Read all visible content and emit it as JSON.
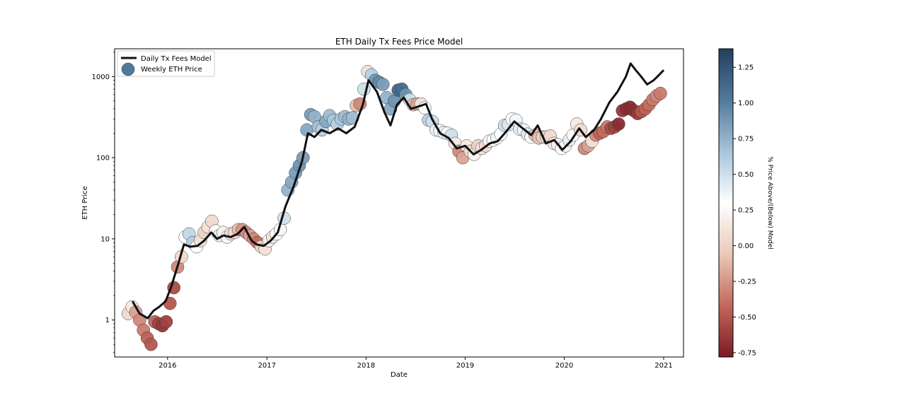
{
  "chart_data": {
    "type": "scatter",
    "title": "ETH Daily Tx Fees Price Model",
    "xlabel": "Date",
    "ylabel": "ETH Price",
    "y_scale": "log",
    "ylim": [
      0.35,
      2200
    ],
    "xlim": [
      "2015-06-20",
      "2021-03-15"
    ],
    "x_ticks": [
      "2016",
      "2017",
      "2018",
      "2019",
      "2020",
      "2021"
    ],
    "y_ticks": [
      "1",
      "10",
      "100",
      "1000"
    ],
    "legend": {
      "placement": "top-left",
      "entries": [
        "Daily Tx Fees Model",
        "Weekly ETH Price"
      ]
    },
    "colorbar": {
      "label": "% Price Above/(Below) Model",
      "range": [
        -0.78,
        1.38
      ],
      "ticks": [
        "1.25",
        "1.00",
        "0.75",
        "0.50",
        "0.25",
        "0.00",
        "-0.25",
        "-0.50",
        "-0.75"
      ],
      "colormap": [
        "#7a1b24",
        "#c36759",
        "#e9c9b8",
        "#ffffff",
        "#a7c5db",
        "#527a9c",
        "#243f60"
      ]
    },
    "series": [
      {
        "name": "Daily Tx Fees Model",
        "kind": "line",
        "color": "#111111",
        "points": [
          [
            "2015-08-25",
            1.7
          ],
          [
            "2015-09-20",
            1.2
          ],
          [
            "2015-10-20",
            1.05
          ],
          [
            "2015-11-10",
            1.3
          ],
          [
            "2015-12-01",
            1.45
          ],
          [
            "2015-12-25",
            1.7
          ],
          [
            "2016-01-15",
            2.6
          ],
          [
            "2016-02-10",
            5.0
          ],
          [
            "2016-03-01",
            8.5
          ],
          [
            "2016-03-25",
            8.0
          ],
          [
            "2016-04-20",
            8.2
          ],
          [
            "2016-05-15",
            9.5
          ],
          [
            "2016-06-10",
            12.0
          ],
          [
            "2016-07-01",
            10.0
          ],
          [
            "2016-07-25",
            11.0
          ],
          [
            "2016-08-20",
            10.5
          ],
          [
            "2016-09-15",
            11.5
          ],
          [
            "2016-10-10",
            14.0
          ],
          [
            "2016-11-05",
            9.5
          ],
          [
            "2016-11-25",
            8.5
          ],
          [
            "2016-12-20",
            8.2
          ],
          [
            "2017-01-15",
            9.5
          ],
          [
            "2017-02-10",
            12.0
          ],
          [
            "2017-03-10",
            25.0
          ],
          [
            "2017-04-10",
            45.0
          ],
          [
            "2017-05-10",
            90.0
          ],
          [
            "2017-06-01",
            200.0
          ],
          [
            "2017-06-25",
            180.0
          ],
          [
            "2017-07-20",
            220.0
          ],
          [
            "2017-08-20",
            200.0
          ],
          [
            "2017-09-20",
            230.0
          ],
          [
            "2017-10-20",
            200.0
          ],
          [
            "2017-11-20",
            240.0
          ],
          [
            "2017-12-20",
            450.0
          ],
          [
            "2018-01-10",
            900.0
          ],
          [
            "2018-02-10",
            650.0
          ],
          [
            "2018-03-10",
            360.0
          ],
          [
            "2018-04-01",
            250.0
          ],
          [
            "2018-04-25",
            450.0
          ],
          [
            "2018-05-20",
            550.0
          ],
          [
            "2018-06-15",
            400.0
          ],
          [
            "2018-07-15",
            430.0
          ],
          [
            "2018-08-10",
            460.0
          ],
          [
            "2018-09-01",
            300.0
          ],
          [
            "2018-10-01",
            200.0
          ],
          [
            "2018-11-01",
            175.0
          ],
          [
            "2018-12-01",
            130.0
          ],
          [
            "2019-01-01",
            140.0
          ],
          [
            "2019-02-01",
            110.0
          ],
          [
            "2019-03-01",
            125.0
          ],
          [
            "2019-04-01",
            150.0
          ],
          [
            "2019-05-01",
            160.0
          ],
          [
            "2019-06-01",
            210.0
          ],
          [
            "2019-07-01",
            280.0
          ],
          [
            "2019-08-01",
            230.0
          ],
          [
            "2019-09-01",
            190.0
          ],
          [
            "2019-09-25",
            250.0
          ],
          [
            "2019-10-25",
            150.0
          ],
          [
            "2019-11-25",
            165.0
          ],
          [
            "2019-12-25",
            125.0
          ],
          [
            "2020-01-25",
            160.0
          ],
          [
            "2020-02-25",
            230.0
          ],
          [
            "2020-03-20",
            180.0
          ],
          [
            "2020-04-20",
            220.0
          ],
          [
            "2020-05-15",
            300.0
          ],
          [
            "2020-06-15",
            480.0
          ],
          [
            "2020-07-15",
            650.0
          ],
          [
            "2020-08-15",
            1000.0
          ],
          [
            "2020-09-01",
            1450.0
          ],
          [
            "2020-09-20",
            1200.0
          ],
          [
            "2020-10-10",
            1000.0
          ],
          [
            "2020-11-01",
            800.0
          ],
          [
            "2020-11-25",
            900.0
          ],
          [
            "2020-12-15",
            1050.0
          ],
          [
            "2021-01-01",
            1200.0
          ]
        ]
      },
      {
        "name": "Weekly ETH Price",
        "kind": "scatter",
        "legend_color": "#4e7a9c",
        "points": [
          [
            "2015-08-09",
            1.2,
            0.05
          ],
          [
            "2015-08-23",
            1.45,
            0.15
          ],
          [
            "2015-09-06",
            1.25,
            -0.2
          ],
          [
            "2015-09-20",
            1.0,
            -0.3
          ],
          [
            "2015-10-04",
            0.75,
            -0.35
          ],
          [
            "2015-10-18",
            0.6,
            -0.45
          ],
          [
            "2015-11-01",
            0.5,
            -0.5
          ],
          [
            "2015-11-15",
            0.95,
            -0.45
          ],
          [
            "2015-11-29",
            0.9,
            -0.6
          ],
          [
            "2015-12-13",
            0.85,
            -0.65
          ],
          [
            "2015-12-27",
            0.95,
            -0.6
          ],
          [
            "2016-01-10",
            1.6,
            -0.5
          ],
          [
            "2016-01-24",
            2.5,
            -0.55
          ],
          [
            "2016-02-07",
            4.5,
            -0.3
          ],
          [
            "2016-02-21",
            6.0,
            0.05
          ],
          [
            "2016-03-06",
            10.5,
            0.3
          ],
          [
            "2016-03-20",
            11.5,
            0.55
          ],
          [
            "2016-04-03",
            9.0,
            0.6
          ],
          [
            "2016-04-17",
            8.0,
            0.3
          ],
          [
            "2016-05-01",
            9.5,
            0.1
          ],
          [
            "2016-05-15",
            12.0,
            0.0
          ],
          [
            "2016-05-29",
            14.0,
            0.1
          ],
          [
            "2016-06-12",
            16.5,
            0.05
          ],
          [
            "2016-06-26",
            12.5,
            0.3
          ],
          [
            "2016-07-10",
            11.0,
            0.4
          ],
          [
            "2016-07-24",
            12.0,
            0.2
          ],
          [
            "2016-08-07",
            10.5,
            0.35
          ],
          [
            "2016-08-21",
            11.5,
            0.1
          ],
          [
            "2016-09-04",
            12.0,
            0.05
          ],
          [
            "2016-09-18",
            13.0,
            -0.1
          ],
          [
            "2016-10-02",
            13.0,
            -0.25
          ],
          [
            "2016-10-16",
            12.0,
            -0.3
          ],
          [
            "2016-10-30",
            11.0,
            -0.2
          ],
          [
            "2016-11-13",
            10.0,
            -0.3
          ],
          [
            "2016-11-27",
            9.0,
            -0.4
          ],
          [
            "2016-12-11",
            8.0,
            0.05
          ],
          [
            "2016-12-25",
            7.5,
            0.1
          ],
          [
            "2017-01-08",
            9.5,
            0.2
          ],
          [
            "2017-01-22",
            10.5,
            0.1
          ],
          [
            "2017-02-05",
            11.5,
            0.3
          ],
          [
            "2017-02-19",
            13.0,
            0.35
          ],
          [
            "2017-03-05",
            18.0,
            0.5
          ],
          [
            "2017-03-19",
            40.0,
            0.75
          ],
          [
            "2017-04-02",
            50.0,
            0.8
          ],
          [
            "2017-04-16",
            65.0,
            0.85
          ],
          [
            "2017-04-30",
            80.0,
            0.9
          ],
          [
            "2017-05-14",
            100.0,
            0.85
          ],
          [
            "2017-05-28",
            220.0,
            0.8
          ],
          [
            "2017-06-11",
            340.0,
            0.85
          ],
          [
            "2017-06-25",
            320.0,
            0.75
          ],
          [
            "2017-07-09",
            240.0,
            0.7
          ],
          [
            "2017-07-23",
            220.0,
            0.6
          ],
          [
            "2017-08-06",
            280.0,
            0.8
          ],
          [
            "2017-08-20",
            330.0,
            0.7
          ],
          [
            "2017-09-03",
            290.0,
            0.65
          ],
          [
            "2017-09-17",
            260.0,
            0.6
          ],
          [
            "2017-10-01",
            300.0,
            0.65
          ],
          [
            "2017-10-15",
            320.0,
            0.7
          ],
          [
            "2017-10-29",
            300.0,
            0.75
          ],
          [
            "2017-11-12",
            310.0,
            0.7
          ],
          [
            "2017-11-26",
            440.0,
            -0.1
          ],
          [
            "2017-12-10",
            460.0,
            -0.3
          ],
          [
            "2017-12-24",
            700.0,
            0.5
          ],
          [
            "2018-01-07",
            1150.0,
            0.1
          ],
          [
            "2018-01-21",
            1050.0,
            0.6
          ],
          [
            "2018-02-04",
            900.0,
            0.9
          ],
          [
            "2018-02-18",
            850.0,
            0.95
          ],
          [
            "2018-03-04",
            800.0,
            0.85
          ],
          [
            "2018-03-18",
            550.0,
            0.75
          ],
          [
            "2018-04-01",
            400.0,
            0.8
          ],
          [
            "2018-04-15",
            500.0,
            0.9
          ],
          [
            "2018-04-29",
            680.0,
            1.15
          ],
          [
            "2018-05-13",
            700.0,
            1.1
          ],
          [
            "2018-05-27",
            600.0,
            0.9
          ],
          [
            "2018-06-10",
            520.0,
            0.5
          ],
          [
            "2018-06-24",
            450.0,
            -0.1
          ],
          [
            "2018-07-08",
            460.0,
            -0.2
          ],
          [
            "2018-07-22",
            460.0,
            0.1
          ],
          [
            "2018-08-05",
            410.0,
            0.3
          ],
          [
            "2018-08-19",
            290.0,
            0.6
          ],
          [
            "2018-09-02",
            280.0,
            0.5
          ],
          [
            "2018-09-16",
            220.0,
            0.4
          ],
          [
            "2018-09-30",
            215.0,
            0.3
          ],
          [
            "2018-10-14",
            205.0,
            0.4
          ],
          [
            "2018-10-28",
            200.0,
            0.3
          ],
          [
            "2018-11-11",
            190.0,
            0.5
          ],
          [
            "2018-11-25",
            150.0,
            0.15
          ],
          [
            "2018-12-09",
            120.0,
            -0.3
          ],
          [
            "2018-12-23",
            100.0,
            -0.2
          ],
          [
            "2019-01-06",
            140.0,
            0.15
          ],
          [
            "2019-01-20",
            120.0,
            0.05
          ],
          [
            "2019-02-03",
            110.0,
            0.2
          ],
          [
            "2019-02-17",
            140.0,
            0.0
          ],
          [
            "2019-03-03",
            130.0,
            0.1
          ],
          [
            "2019-03-17",
            140.0,
            0.05
          ],
          [
            "2019-03-31",
            160.0,
            0.25
          ],
          [
            "2019-04-14",
            165.0,
            0.3
          ],
          [
            "2019-04-28",
            175.0,
            0.35
          ],
          [
            "2019-05-12",
            195.0,
            0.3
          ],
          [
            "2019-05-26",
            250.0,
            0.5
          ],
          [
            "2019-06-09",
            255.0,
            0.45
          ],
          [
            "2019-06-23",
            300.0,
            0.3
          ],
          [
            "2019-07-07",
            290.0,
            0.35
          ],
          [
            "2019-07-21",
            225.0,
            0.4
          ],
          [
            "2019-08-04",
            220.0,
            0.35
          ],
          [
            "2019-08-18",
            195.0,
            0.45
          ],
          [
            "2019-09-01",
            180.0,
            0.3
          ],
          [
            "2019-09-15",
            190.0,
            -0.1
          ],
          [
            "2019-09-29",
            175.0,
            -0.1
          ],
          [
            "2019-10-13",
            180.0,
            0.0
          ],
          [
            "2019-10-27",
            180.0,
            0.1
          ],
          [
            "2019-11-10",
            185.0,
            0.05
          ],
          [
            "2019-11-24",
            150.0,
            0.15
          ],
          [
            "2019-12-08",
            145.0,
            0.2
          ],
          [
            "2019-12-22",
            130.0,
            0.3
          ],
          [
            "2020-01-05",
            140.0,
            0.35
          ],
          [
            "2020-01-19",
            165.0,
            0.4
          ],
          [
            "2020-02-02",
            190.0,
            0.25
          ],
          [
            "2020-02-16",
            260.0,
            0.15
          ],
          [
            "2020-03-01",
            220.0,
            0.05
          ],
          [
            "2020-03-15",
            130.0,
            -0.3
          ],
          [
            "2020-03-29",
            140.0,
            -0.2
          ],
          [
            "2020-04-12",
            160.0,
            0.1
          ],
          [
            "2020-04-26",
            190.0,
            -0.3
          ],
          [
            "2020-05-10",
            200.0,
            -0.45
          ],
          [
            "2020-05-24",
            210.0,
            -0.4
          ],
          [
            "2020-06-07",
            240.0,
            -0.35
          ],
          [
            "2020-06-21",
            230.0,
            -0.55
          ],
          [
            "2020-07-05",
            240.0,
            -0.6
          ],
          [
            "2020-07-19",
            260.0,
            -0.7
          ],
          [
            "2020-08-02",
            380.0,
            -0.65
          ],
          [
            "2020-08-16",
            400.0,
            -0.7
          ],
          [
            "2020-08-30",
            420.0,
            -0.72
          ],
          [
            "2020-09-13",
            380.0,
            -0.7
          ],
          [
            "2020-09-27",
            350.0,
            -0.65
          ],
          [
            "2020-10-11",
            370.0,
            -0.5
          ],
          [
            "2020-10-25",
            400.0,
            -0.45
          ],
          [
            "2020-11-08",
            450.0,
            -0.4
          ],
          [
            "2020-11-22",
            520.0,
            -0.35
          ],
          [
            "2020-12-06",
            580.0,
            -0.3
          ],
          [
            "2020-12-20",
            620.0,
            -0.35
          ]
        ]
      }
    ]
  }
}
